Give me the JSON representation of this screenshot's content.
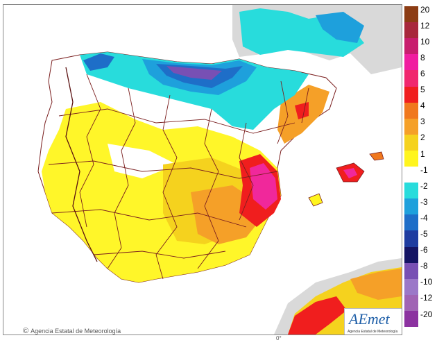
{
  "map": {
    "copyright_text": "Agencia Estatal de Meteorología",
    "logo_word": "AEmet",
    "logo_sub": "Agencia Estatal de Meteorología",
    "scale_label": "0°"
  },
  "legend": {
    "labels": [
      "20",
      "12",
      "10",
      "8",
      "6",
      "5",
      "4",
      "3",
      "2",
      "1",
      "-1",
      "-2",
      "-3",
      "-4",
      "-5",
      "-6",
      "-8",
      "-10",
      "-12",
      "-20"
    ],
    "colors": [
      "#8c3c14",
      "#a8283c",
      "#c81e6e",
      "#f01ea0",
      "#f0286e",
      "#f01e1e",
      "#f0781e",
      "#f5a028",
      "#f5d21e",
      "#fff51e",
      "#ffffff",
      "#28dcdc",
      "#1ea0dc",
      "#1e6ec8",
      "#1e3ca0",
      "#141464",
      "#7850b4",
      "#9b78c8",
      "#a064b4",
      "#8c32a0"
    ]
  }
}
